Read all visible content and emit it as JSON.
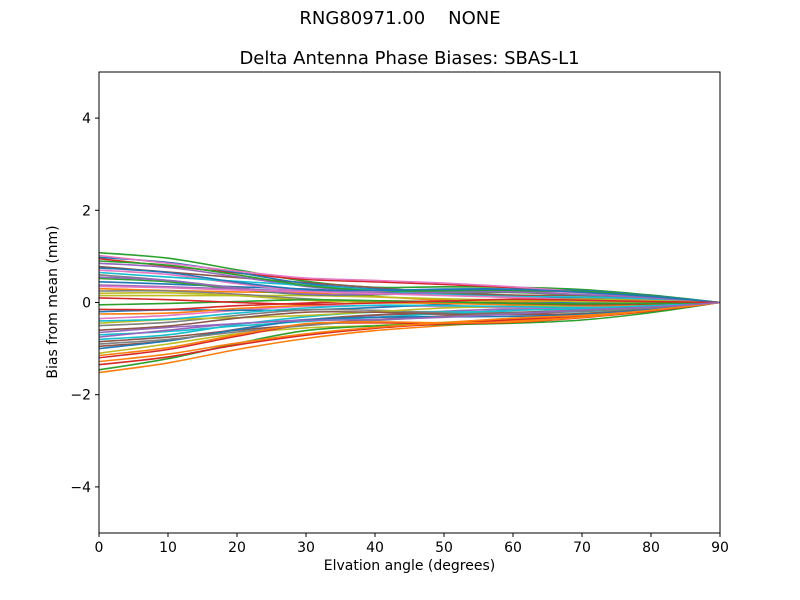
{
  "figure": {
    "suptitle": "RNG80971.00    NONE",
    "background": "#ffffff",
    "text_color": "#000000"
  },
  "chart_data": {
    "type": "line",
    "title": "Delta Antenna Phase Biases: SBAS-L1",
    "xlabel": "Elvation angle (degrees)",
    "ylabel": "Bias from mean (mm)",
    "xlim": [
      0,
      90
    ],
    "ylim": [
      -5,
      5
    ],
    "xticks": [
      0,
      10,
      20,
      30,
      40,
      50,
      60,
      70,
      80,
      90
    ],
    "yticks": [
      -4,
      -2,
      0,
      2,
      4
    ],
    "grid": false,
    "legend_position": "none",
    "axes_box": true,
    "line_width": 1.6,
    "x": [
      0,
      10,
      20,
      30,
      40,
      50,
      60,
      70,
      80,
      90
    ],
    "series": [
      {
        "color": "#1f77b4",
        "values": [
          0.45,
          0.4,
          0.34,
          0.29,
          0.23,
          0.18,
          0.14,
          0.09,
          0.05,
          0
        ]
      },
      {
        "color": "#ff7f0e",
        "values": [
          -1.52,
          -1.31,
          -1.02,
          -0.78,
          -0.61,
          -0.5,
          -0.4,
          -0.32,
          -0.19,
          0
        ]
      },
      {
        "color": "#2ca02c",
        "values": [
          1.08,
          0.96,
          0.71,
          0.46,
          0.33,
          0.34,
          0.33,
          0.28,
          0.16,
          0
        ]
      },
      {
        "color": "#d62728",
        "values": [
          0.95,
          0.79,
          0.64,
          0.5,
          0.45,
          0.39,
          0.32,
          0.22,
          0.12,
          0
        ]
      },
      {
        "color": "#9467bd",
        "values": [
          -0.65,
          -0.54,
          -0.46,
          -0.37,
          -0.28,
          -0.19,
          -0.14,
          -0.12,
          -0.07,
          0
        ]
      },
      {
        "color": "#8c564b",
        "values": [
          0.78,
          0.66,
          0.54,
          0.43,
          0.32,
          0.22,
          0.16,
          0.15,
          0.1,
          0
        ]
      },
      {
        "color": "#e377c2",
        "values": [
          -0.35,
          -0.28,
          -0.17,
          -0.08,
          -0.07,
          -0.09,
          -0.11,
          -0.1,
          -0.06,
          0
        ]
      },
      {
        "color": "#7f7f7f",
        "values": [
          0.6,
          0.48,
          0.32,
          0.19,
          0.18,
          0.2,
          0.22,
          0.17,
          0.09,
          0
        ]
      },
      {
        "color": "#bcbd22",
        "values": [
          -1.1,
          -0.9,
          -0.68,
          -0.55,
          -0.5,
          -0.43,
          -0.35,
          -0.24,
          -0.14,
          0
        ]
      },
      {
        "color": "#17becf",
        "values": [
          -0.8,
          -0.7,
          -0.48,
          -0.31,
          -0.21,
          -0.2,
          -0.21,
          -0.2,
          -0.12,
          0
        ]
      },
      {
        "color": "#1f77b4",
        "values": [
          -0.2,
          -0.16,
          -0.17,
          -0.16,
          -0.11,
          -0.04,
          0.0,
          -0.01,
          -0.01,
          0
        ]
      },
      {
        "color": "#ff7f0e",
        "values": [
          0.3,
          0.26,
          0.23,
          0.21,
          0.13,
          0.05,
          0.02,
          0.03,
          0.03,
          0
        ]
      },
      {
        "color": "#2ca02c",
        "values": [
          -1.46,
          -1.22,
          -0.89,
          -0.61,
          -0.51,
          -0.48,
          -0.45,
          -0.38,
          -0.22,
          0
        ]
      },
      {
        "color": "#d62728",
        "values": [
          -1.35,
          -1.18,
          -0.92,
          -0.71,
          -0.56,
          -0.46,
          -0.37,
          -0.29,
          -0.18,
          0
        ]
      },
      {
        "color": "#9467bd",
        "values": [
          0.85,
          0.76,
          0.56,
          0.35,
          0.24,
          0.23,
          0.24,
          0.22,
          0.13,
          0
        ]
      },
      {
        "color": "#8c564b",
        "values": [
          -0.95,
          -0.83,
          -0.58,
          -0.38,
          -0.27,
          -0.25,
          -0.26,
          -0.24,
          -0.14,
          0
        ]
      },
      {
        "color": "#e377c2",
        "values": [
          0.7,
          0.61,
          0.41,
          0.25,
          0.24,
          0.27,
          0.27,
          0.21,
          0.12,
          0
        ]
      },
      {
        "color": "#7f7f7f",
        "values": [
          -0.5,
          -0.43,
          -0.28,
          -0.16,
          -0.17,
          -0.22,
          -0.22,
          -0.16,
          -0.08,
          0
        ]
      },
      {
        "color": "#bcbd22",
        "values": [
          0.15,
          0.15,
          0.15,
          0.15,
          0.12,
          0.08,
          0.05,
          0.02,
          0.01,
          0
        ]
      },
      {
        "color": "#17becf",
        "values": [
          -0.7,
          -0.63,
          -0.51,
          -0.41,
          -0.32,
          -0.24,
          -0.17,
          -0.14,
          -0.09,
          0
        ]
      },
      {
        "color": "#1f77b4",
        "values": [
          0.98,
          0.87,
          0.65,
          0.41,
          0.29,
          0.27,
          0.27,
          0.26,
          0.15,
          0
        ]
      },
      {
        "color": "#ff7f0e",
        "values": [
          -0.25,
          -0.23,
          -0.13,
          -0.06,
          -0.01,
          -0.02,
          -0.05,
          -0.07,
          -0.05,
          0
        ]
      },
      {
        "color": "#2ca02c",
        "values": [
          0.52,
          0.45,
          0.29,
          0.17,
          0.17,
          0.21,
          0.22,
          0.16,
          0.09,
          0
        ]
      },
      {
        "color": "#d62728",
        "values": [
          -1.2,
          -1.02,
          -0.73,
          -0.48,
          -0.44,
          -0.46,
          -0.43,
          -0.33,
          -0.18,
          0
        ]
      },
      {
        "color": "#9467bd",
        "values": [
          0.38,
          0.34,
          0.29,
          0.25,
          0.2,
          0.16,
          0.11,
          0.07,
          0.04,
          0
        ]
      },
      {
        "color": "#8c564b",
        "values": [
          -0.85,
          -0.75,
          -0.6,
          -0.48,
          -0.37,
          -0.29,
          -0.22,
          -0.17,
          -0.11,
          0
        ]
      },
      {
        "color": "#e377c2",
        "values": [
          1.02,
          0.85,
          0.68,
          0.53,
          0.48,
          0.42,
          0.34,
          0.23,
          0.13,
          0
        ]
      },
      {
        "color": "#7f7f7f",
        "values": [
          0.25,
          0.25,
          0.18,
          0.08,
          0.01,
          0.03,
          0.06,
          0.08,
          0.05,
          0
        ]
      },
      {
        "color": "#bcbd22",
        "values": [
          -0.45,
          -0.37,
          -0.33,
          -0.28,
          -0.2,
          -0.12,
          -0.08,
          -0.07,
          -0.04,
          0
        ]
      },
      {
        "color": "#17becf",
        "values": [
          0.65,
          0.55,
          0.46,
          0.37,
          0.27,
          0.17,
          0.13,
          0.12,
          0.08,
          0
        ]
      },
      {
        "color": "#1f77b4",
        "values": [
          -1.0,
          -0.83,
          -0.59,
          -0.38,
          -0.32,
          -0.31,
          -0.3,
          -0.26,
          -0.15,
          0
        ]
      },
      {
        "color": "#ff7f0e",
        "values": [
          -1.28,
          -1.12,
          -0.88,
          -0.68,
          -0.54,
          -0.44,
          -0.34,
          -0.28,
          -0.17,
          0
        ]
      },
      {
        "color": "#2ca02c",
        "values": [
          0.9,
          0.81,
          0.6,
          0.37,
          0.26,
          0.25,
          0.25,
          0.24,
          0.14,
          0
        ]
      },
      {
        "color": "#d62728",
        "values": [
          -0.15,
          -0.15,
          -0.07,
          -0.01,
          0.03,
          0.02,
          -0.02,
          -0.05,
          -0.03,
          0
        ]
      },
      {
        "color": "#9467bd",
        "values": [
          0.55,
          0.48,
          0.31,
          0.18,
          0.18,
          0.22,
          0.23,
          0.17,
          0.1,
          0
        ]
      },
      {
        "color": "#8c564b",
        "values": [
          -0.6,
          -0.51,
          -0.34,
          -0.21,
          -0.21,
          -0.25,
          -0.25,
          -0.18,
          -0.09,
          0
        ]
      },
      {
        "color": "#e377c2",
        "values": [
          0.35,
          0.32,
          0.27,
          0.24,
          0.19,
          0.15,
          0.11,
          0.06,
          0.04,
          0
        ]
      },
      {
        "color": "#7f7f7f",
        "values": [
          -0.9,
          -0.8,
          -0.64,
          -0.5,
          -0.39,
          -0.31,
          -0.23,
          -0.19,
          -0.12,
          0
        ]
      },
      {
        "color": "#bcbd22",
        "values": [
          0.2,
          0.21,
          0.15,
          0.05,
          0.0,
          0.01,
          0.04,
          0.07,
          0.04,
          0
        ]
      },
      {
        "color": "#17becf",
        "values": [
          -0.4,
          -0.36,
          -0.23,
          -0.12,
          -0.06,
          -0.07,
          -0.09,
          -0.11,
          -0.07,
          0
        ]
      },
      {
        "color": "#1f77b4",
        "values": [
          0.75,
          0.65,
          0.44,
          0.28,
          0.26,
          0.29,
          0.29,
          0.22,
          0.13,
          0
        ]
      },
      {
        "color": "#ff7f0e",
        "values": [
          -1.15,
          -0.98,
          -0.7,
          -0.46,
          -0.42,
          -0.44,
          -0.42,
          -0.32,
          -0.17,
          0
        ]
      },
      {
        "color": "#2ca02c",
        "values": [
          -0.05,
          -0.02,
          0.02,
          0.06,
          0.04,
          0.01,
          -0.02,
          -0.03,
          -0.02,
          0
        ]
      },
      {
        "color": "#d62728",
        "values": [
          0.1,
          0.06,
          0.0,
          -0.04,
          -0.01,
          0.03,
          0.07,
          0.05,
          0.02,
          0
        ]
      },
      {
        "color": "#9467bd",
        "values": [
          -0.75,
          -0.6,
          -0.46,
          -0.39,
          -0.37,
          -0.32,
          -0.25,
          -0.16,
          -0.1,
          0
        ]
      }
    ]
  }
}
